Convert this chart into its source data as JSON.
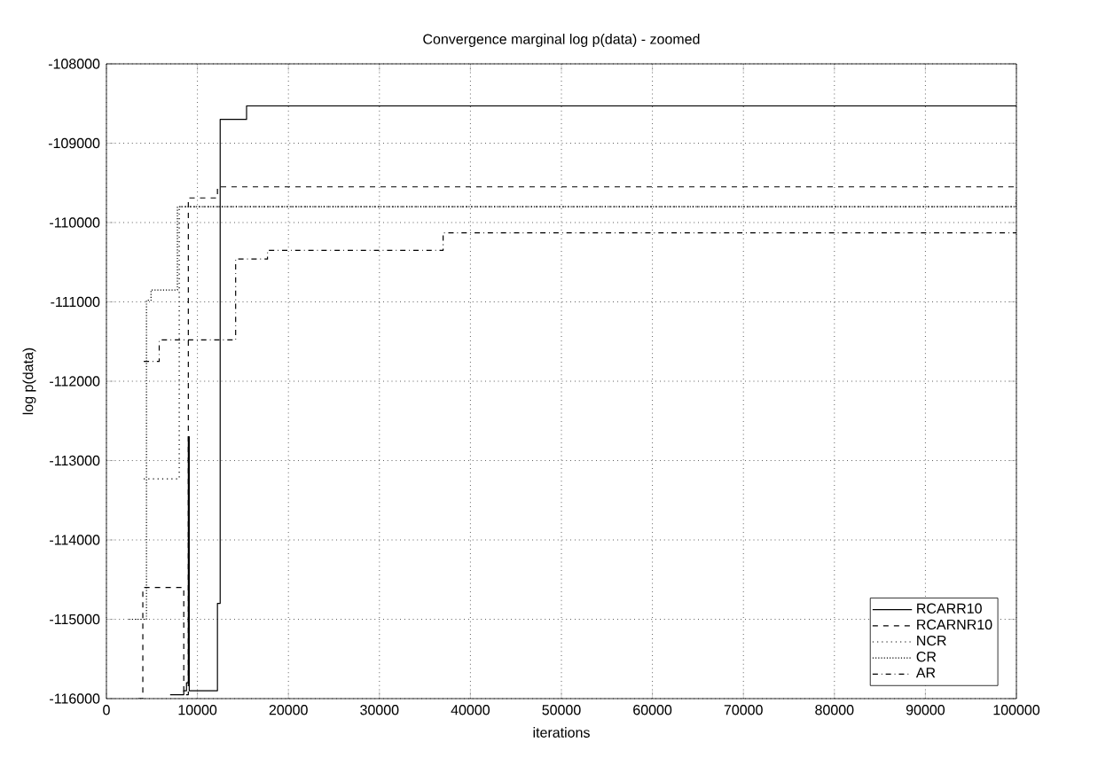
{
  "chart_data": {
    "type": "step",
    "title": "Convergence marginal log p(data) - zoomed",
    "xlabel": "iterations",
    "ylabel": "log p(data)",
    "xlim": [
      0,
      100000
    ],
    "ylim": [
      -116000,
      -108000
    ],
    "xticks": [
      0,
      10000,
      20000,
      30000,
      40000,
      50000,
      60000,
      70000,
      80000,
      90000,
      100000
    ],
    "yticks": [
      -116000,
      -115000,
      -114000,
      -113000,
      -112000,
      -111000,
      -110000,
      -109000,
      -108000
    ],
    "grid": true,
    "legend": "bottom right",
    "series": [
      {
        "name": "RCARR10",
        "color": "#000000",
        "line_style": "solid",
        "x": [
          7000,
          8500,
          8800,
          9000,
          9100,
          12000,
          12200,
          12500,
          15400,
          100000
        ],
        "values": [
          -115950,
          -115900,
          -115800,
          -112700,
          -115900,
          -115900,
          -114800,
          -108700,
          -108530,
          -108530
        ]
      },
      {
        "name": "RCARNR10",
        "color": "#000000",
        "line_style": "dashed",
        "x": [
          3500,
          4000,
          8500,
          9000,
          12200,
          100000
        ],
        "values": [
          -116000,
          -114600,
          -115950,
          -109690,
          -109550,
          -109550
        ]
      },
      {
        "name": "NCR",
        "color": "#000000",
        "line_style": "dotted",
        "x": [
          4100,
          8000,
          100000
        ],
        "values": [
          -113230,
          -109800,
          -109600
        ]
      },
      {
        "name": "CR",
        "color": "#000000",
        "line_style": "densely dotted",
        "x": [
          2500,
          4400,
          4900,
          7800,
          100000
        ],
        "values": [
          -115000,
          -110980,
          -110850,
          -109800,
          -109720
        ]
      },
      {
        "name": "AR",
        "color": "#000000",
        "line_style": "dashdot",
        "x": [
          4100,
          5800,
          14200,
          17700,
          37000,
          100000
        ],
        "values": [
          -111750,
          -111480,
          -110460,
          -110350,
          -110130,
          -110130
        ]
      }
    ]
  }
}
